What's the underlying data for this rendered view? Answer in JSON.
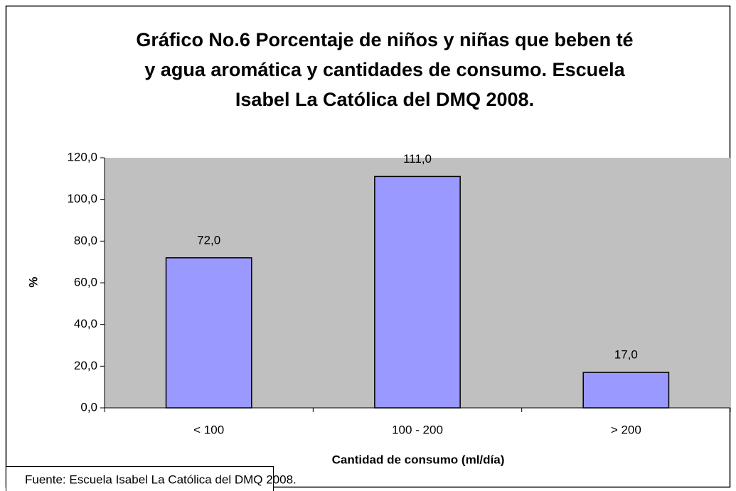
{
  "chart_data": {
    "type": "bar",
    "title": [
      "Gráfico No.6 Porcentaje de niños y niñas que beben té",
      "y agua aromática y cantidades de consumo. Escuela",
      "Isabel La Católica del DMQ 2008."
    ],
    "x_label": "Cantidad de consumo (ml/día)",
    "y_label": "%",
    "source": "Fuente: Escuela Isabel La Católica del DMQ 2008.",
    "categories": [
      "< 100",
      "100 - 200",
      "> 200"
    ],
    "values": [
      72,
      111,
      17
    ],
    "value_labels": [
      "72,0",
      "111,0",
      "17,0"
    ],
    "color": "#9999ff",
    "plot_background": "#c0c0c0",
    "ylim": [
      0,
      120
    ],
    "yticks": [
      {
        "value": 0,
        "label": "0,0"
      },
      {
        "value": 20,
        "label": "20,0"
      },
      {
        "value": 40,
        "label": "40,0"
      },
      {
        "value": 60,
        "label": "60,0"
      },
      {
        "value": 80,
        "label": "80,0"
      },
      {
        "value": 100,
        "label": "100,0"
      },
      {
        "value": 120,
        "label": "120,0"
      }
    ],
    "grid": false
  }
}
